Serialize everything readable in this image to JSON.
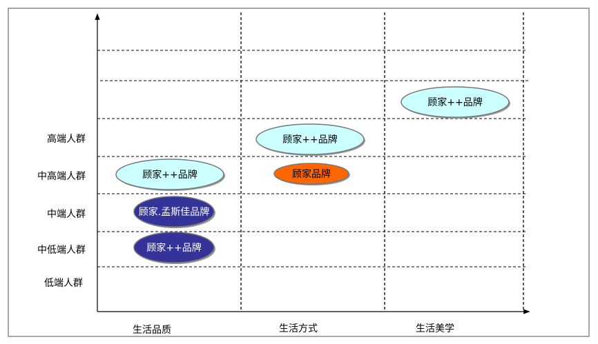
{
  "rows": [
    "高端人群",
    "中高端人群",
    "中端人群",
    "中低端人群",
    "低端人群"
  ],
  "columns": [
    "生活品质",
    "生活方式",
    "生活美学"
  ],
  "bubbles": [
    {
      "label": "顾家++品牌",
      "color": "#ccffff",
      "text_color": "#000000"
    },
    {
      "label": "顾家.孟斯佳品牌",
      "color": "#333399",
      "text_color": "#ffffff"
    },
    {
      "label": "顾家++品牌",
      "color": "#333399",
      "text_color": "#ffffff"
    },
    {
      "label": "顾家++品牌",
      "color": "#ccffff",
      "text_color": "#000000"
    },
    {
      "label": "顾家品牌",
      "color": "#ff6600",
      "text_color": "#000000"
    },
    {
      "label": "顾家++品牌",
      "color": "#ccffff",
      "text_color": "#000000"
    }
  ]
}
